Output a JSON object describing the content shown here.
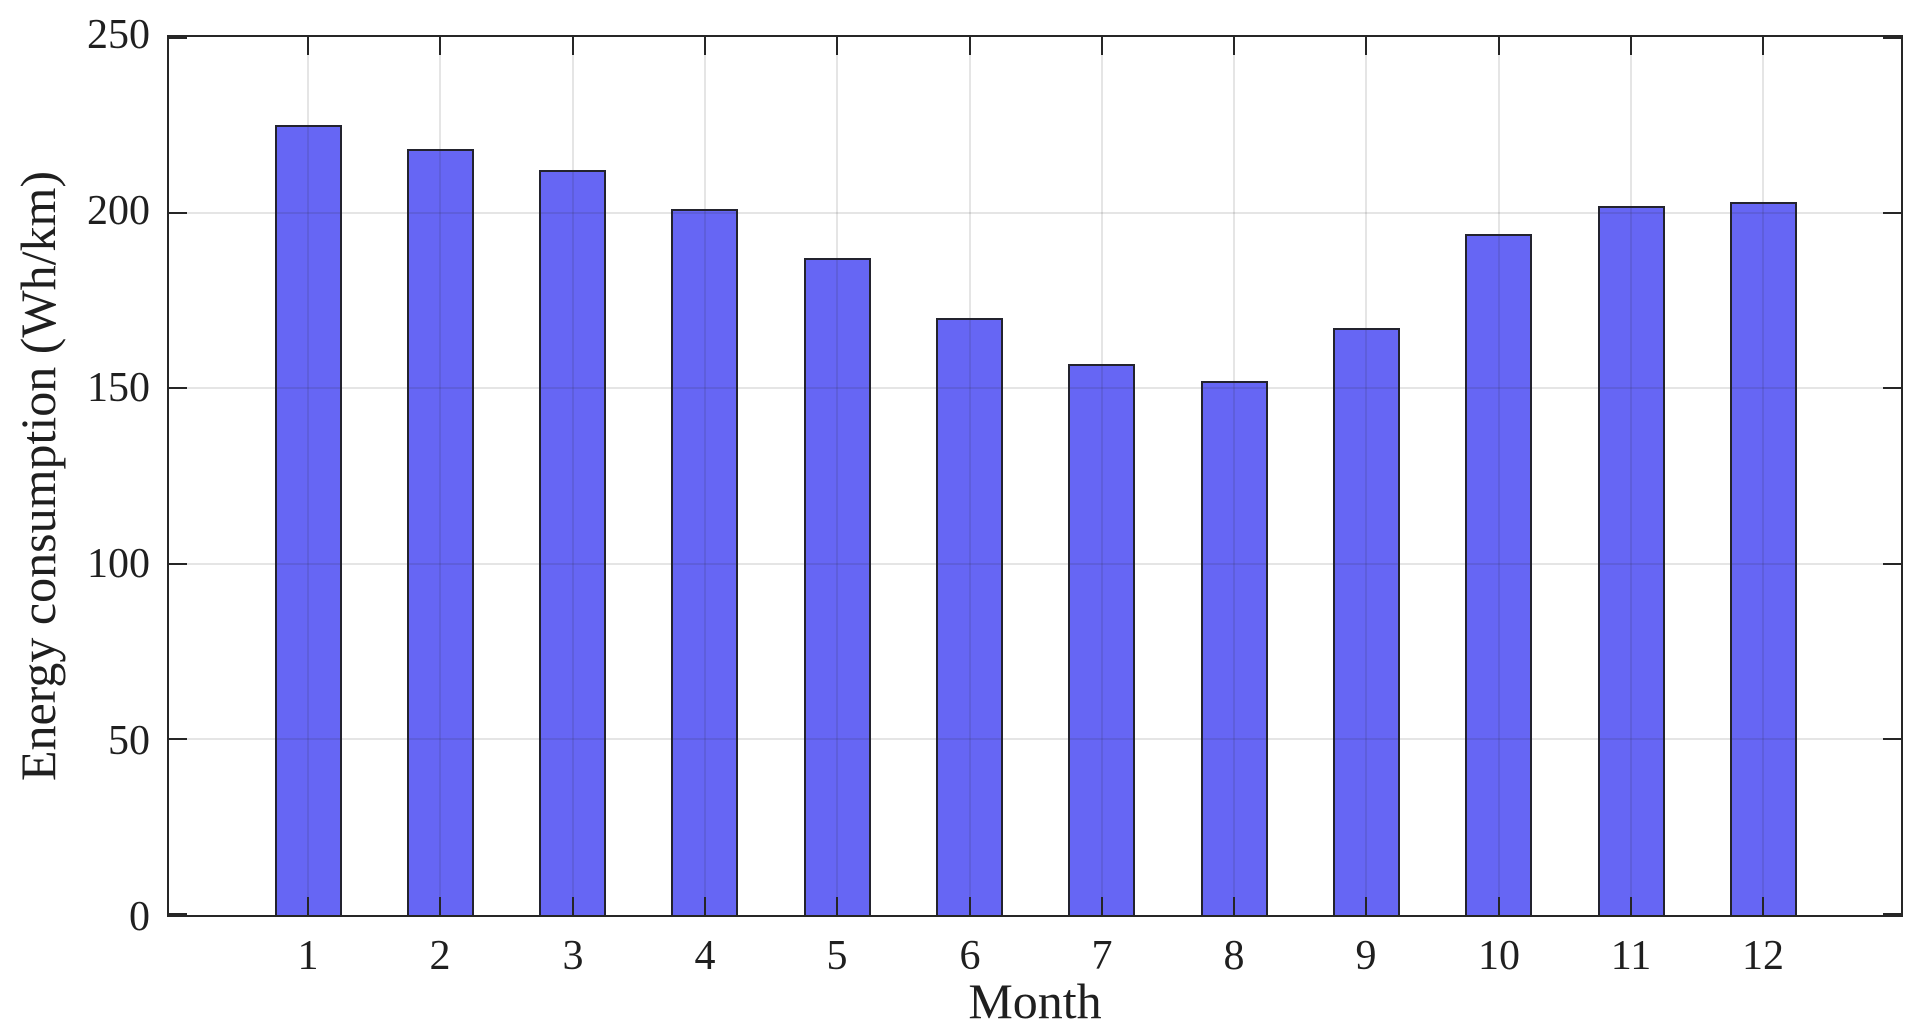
{
  "figure": {
    "background": "#ffffff"
  },
  "chart_data": {
    "type": "bar",
    "categories": [
      "1",
      "2",
      "3",
      "4",
      "5",
      "6",
      "7",
      "8",
      "9",
      "10",
      "11",
      "12"
    ],
    "values": [
      225,
      218,
      212,
      201,
      187,
      170,
      157,
      152,
      167,
      194,
      202,
      203
    ],
    "title": "",
    "xlabel": "Month",
    "ylabel": "Energy consumption (Wh/km)",
    "ylim": [
      0,
      250
    ],
    "yticks": [
      0,
      50,
      100,
      150,
      200,
      250
    ],
    "grid": "both",
    "legend": "none",
    "bar_width_fraction": 0.5,
    "colors": {
      "bar_fill": "#6666f4",
      "bar_edge": "#23232e",
      "axis": "#262626",
      "grid_on_white": "#e2e2e2",
      "tick_label": "#1f1f1f"
    }
  }
}
